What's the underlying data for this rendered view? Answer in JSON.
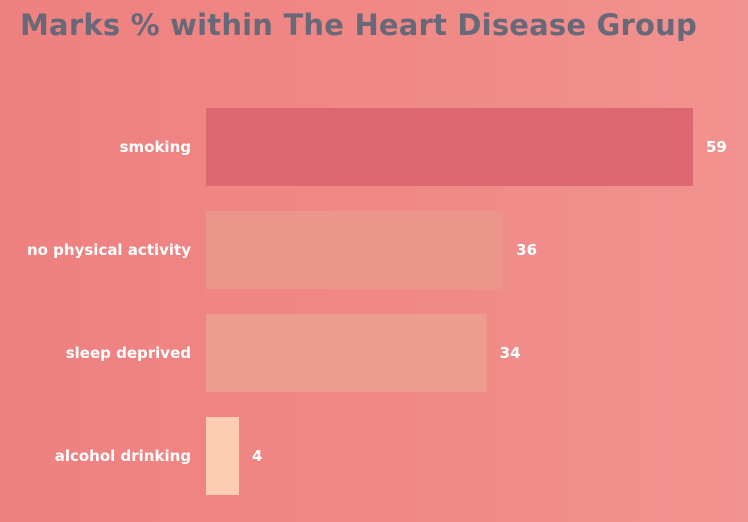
{
  "chart_data": {
    "type": "bar",
    "orientation": "horizontal",
    "title": "Marks % within The Heart Disease Group",
    "categories": [
      "smoking",
      "no physical activity",
      "sleep deprived",
      "alcohol drinking"
    ],
    "values": [
      59,
      36,
      34,
      4
    ],
    "colors": [
      "#de6872",
      "#eb958b",
      "#ed9d8d",
      "#fdcdb2"
    ],
    "xlim": [
      0,
      59
    ],
    "grid": false,
    "legend": "none"
  }
}
